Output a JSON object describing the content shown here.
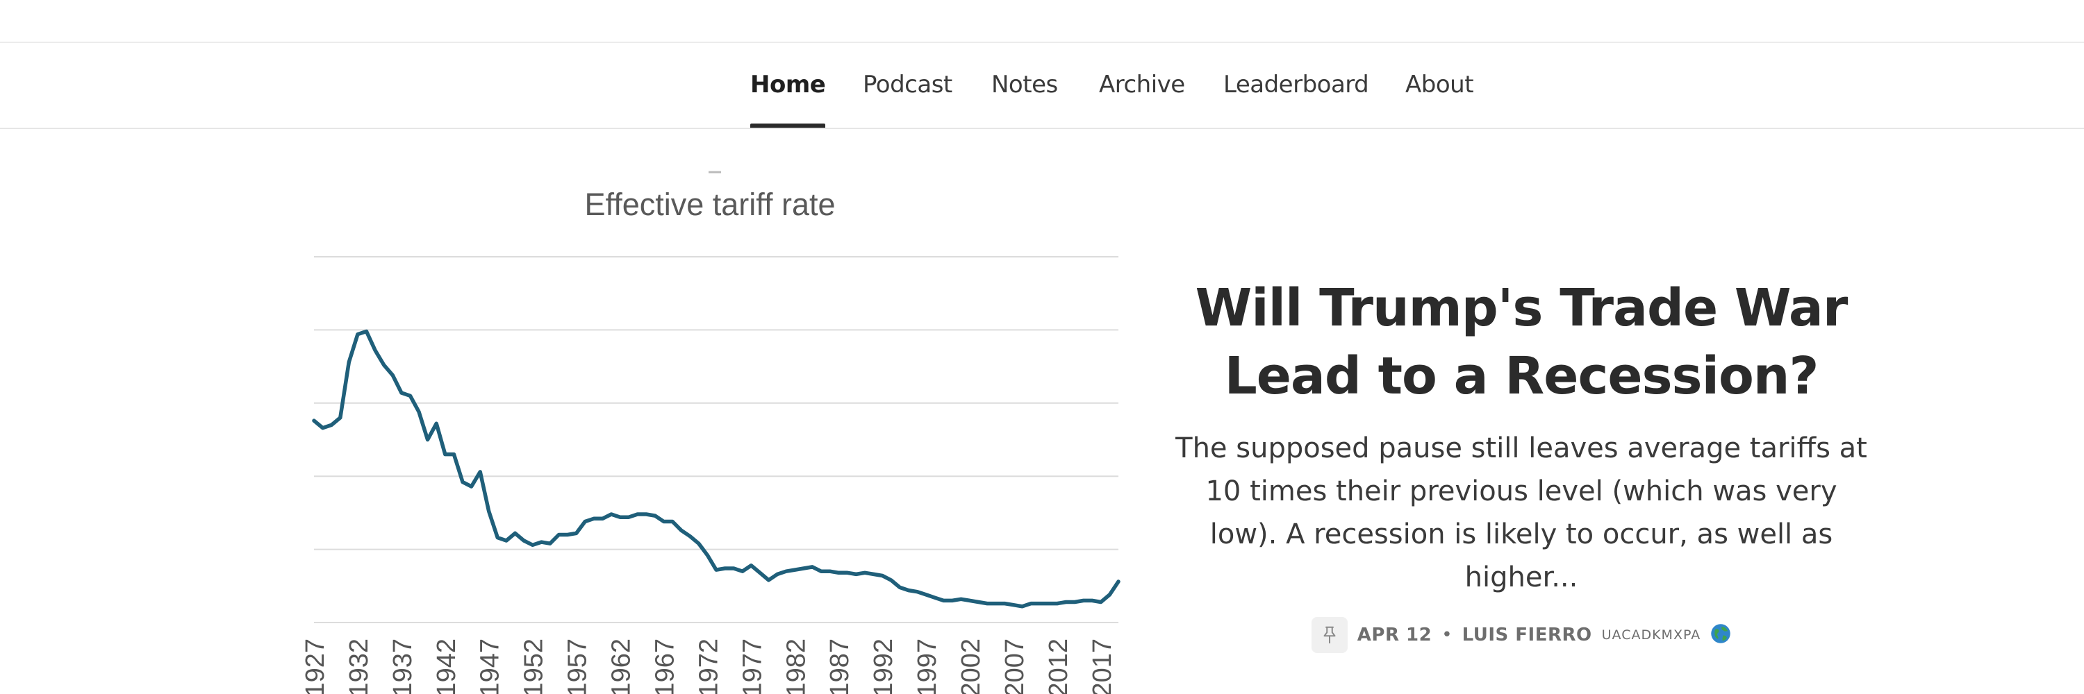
{
  "nav": {
    "items": [
      {
        "label": "Home",
        "active": true
      },
      {
        "label": "Podcast"
      },
      {
        "label": "Notes"
      },
      {
        "label": "Archive"
      },
      {
        "label": "Leaderboard"
      },
      {
        "label": "About"
      }
    ]
  },
  "post": {
    "title": "Will Trump's Trade War Lead to a Recession?",
    "subtitle": "The supposed pause still leaves average tariffs at 10 times their previous level (which was very low). A recession is likely to occur, as well as higher...",
    "date": "APR 12",
    "separator": "•",
    "author": "LUIS FIERRO",
    "flags": "UACADKMXPA",
    "pin_icon": "pin-icon",
    "globe_icon": "globe-icon"
  },
  "chart_data": {
    "type": "line",
    "title": "Effective tariff rate",
    "xlabel": "",
    "ylabel": "",
    "grid": true,
    "color": "#1f5f7a",
    "ylim": [
      0,
      25
    ],
    "x_ticks": [
      "1927",
      "1932",
      "1937",
      "1942",
      "1947",
      "1952",
      "1957",
      "1962",
      "1967",
      "1972",
      "1977",
      "1982",
      "1987",
      "1992",
      "1997",
      "2002",
      "2007",
      "2012",
      "2017"
    ],
    "x": [
      1927,
      1928,
      1929,
      1930,
      1931,
      1932,
      1933,
      1934,
      1935,
      1936,
      1937,
      1938,
      1939,
      1940,
      1941,
      1942,
      1943,
      1944,
      1945,
      1946,
      1947,
      1948,
      1949,
      1950,
      1951,
      1952,
      1953,
      1954,
      1955,
      1956,
      1957,
      1958,
      1959,
      1960,
      1961,
      1962,
      1963,
      1964,
      1965,
      1966,
      1967,
      1968,
      1969,
      1970,
      1971,
      1972,
      1973,
      1974,
      1975,
      1976,
      1977,
      1978,
      1979,
      1980,
      1981,
      1982,
      1983,
      1984,
      1985,
      1986,
      1987,
      1988,
      1989,
      1990,
      1991,
      1992,
      1993,
      1994,
      1995,
      1996,
      1997,
      1998,
      1999,
      2000,
      2001,
      2002,
      2003,
      2004,
      2005,
      2006,
      2007,
      2008,
      2009,
      2010,
      2011,
      2012,
      2013,
      2014,
      2015,
      2016,
      2017,
      2018,
      2019
    ],
    "values": [
      13.8,
      13.3,
      13.5,
      14.0,
      17.8,
      19.7,
      19.9,
      18.6,
      17.6,
      16.9,
      15.7,
      15.5,
      14.4,
      12.5,
      13.6,
      11.5,
      11.5,
      9.6,
      9.3,
      10.3,
      7.6,
      5.8,
      5.6,
      6.1,
      5.6,
      5.3,
      5.5,
      5.4,
      6.0,
      6.0,
      6.1,
      6.9,
      7.1,
      7.1,
      7.4,
      7.2,
      7.2,
      7.4,
      7.4,
      7.3,
      6.9,
      6.9,
      6.3,
      5.9,
      5.4,
      4.6,
      3.6,
      3.7,
      3.7,
      3.5,
      3.9,
      3.4,
      2.9,
      3.3,
      3.5,
      3.6,
      3.7,
      3.8,
      3.5,
      3.5,
      3.4,
      3.4,
      3.3,
      3.4,
      3.3,
      3.2,
      2.9,
      2.4,
      2.2,
      2.1,
      1.9,
      1.7,
      1.5,
      1.5,
      1.6,
      1.5,
      1.4,
      1.3,
      1.3,
      1.3,
      1.2,
      1.1,
      1.3,
      1.3,
      1.3,
      1.3,
      1.4,
      1.4,
      1.5,
      1.5,
      1.4,
      1.9,
      2.8
    ]
  }
}
